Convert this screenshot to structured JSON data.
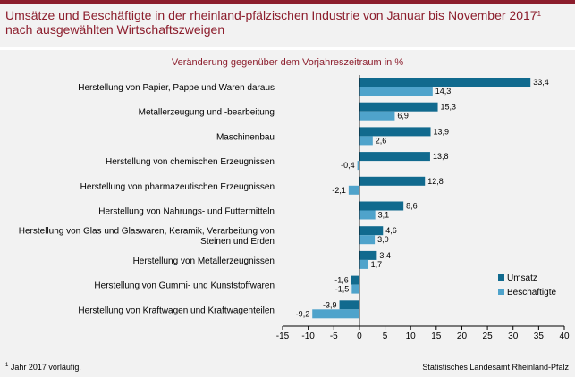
{
  "header": {
    "title_line1": "Umsätze und Beschäftigte in der rheinland-pfälzischen Industrie von Januar bis November 2017",
    "title_sup": "1",
    "title_line2": "nach ausgewählten Wirtschaftszweigen"
  },
  "footer": {
    "note_sup": "1",
    "note": " Jahr 2017 vorläufig.",
    "source": "Statistisches Landesamt Rheinland-Pfalz"
  },
  "colors": {
    "umsatz": "#116a8e",
    "beschaeftigte": "#4fa3cb",
    "accent": "#8c1d2c",
    "background": "#f2f2f2"
  },
  "chart_data": {
    "type": "bar",
    "orientation": "horizontal",
    "subtitle": "Veränderung gegenüber dem Vorjahreszeitraum in %",
    "categories": [
      [
        "Herstellung von Papier, Pappe und Waren daraus"
      ],
      [
        "Metallerzeugung und -bearbeitung"
      ],
      [
        "Maschinenbau"
      ],
      [
        "Herstellung von chemischen Erzeugnissen"
      ],
      [
        "Herstellung von pharmazeutischen Erzeugnissen"
      ],
      [
        "Herstellung von Nahrungs- und Futtermitteln"
      ],
      [
        "Herstellung von Glas und Glaswaren, Keramik, Verarbeitung von",
        "Steinen und Erden"
      ],
      [
        "Herstellung von Metallerzeugnissen"
      ],
      [
        "Herstellung von Gummi- und Kunststoffwaren"
      ],
      [
        "Herstellung von Kraftwagen und Kraftwagenteilen"
      ]
    ],
    "series": [
      {
        "name": "Umsatz",
        "values": [
          33.4,
          15.3,
          13.9,
          13.8,
          12.8,
          8.6,
          4.6,
          3.4,
          -1.6,
          -3.9
        ],
        "labels": [
          "33,4",
          "15,3",
          "13,9",
          "13,8",
          "12,8",
          "8,6",
          "4,6",
          "3,4",
          "-1,6",
          "-3,9"
        ]
      },
      {
        "name": "Beschäftigte",
        "values": [
          14.3,
          6.9,
          2.6,
          -0.4,
          -2.1,
          3.1,
          3.0,
          1.7,
          -1.5,
          -9.2
        ],
        "labels": [
          "14,3",
          "6,9",
          "2,6",
          "-0,4",
          "-2,1",
          "3,1",
          "3,0",
          "1,7",
          "-1,5",
          "-9,2"
        ]
      }
    ],
    "xlim": [
      -15,
      40
    ],
    "xticks": [
      -15,
      -10,
      -5,
      0,
      5,
      10,
      15,
      20,
      25,
      30,
      35,
      40
    ],
    "xtick_labels": [
      "-15",
      "-10",
      "-5",
      "0",
      "5",
      "10",
      "15",
      "20",
      "25",
      "30",
      "35",
      "40"
    ],
    "grid": false,
    "legend_position": "bottom-right"
  }
}
